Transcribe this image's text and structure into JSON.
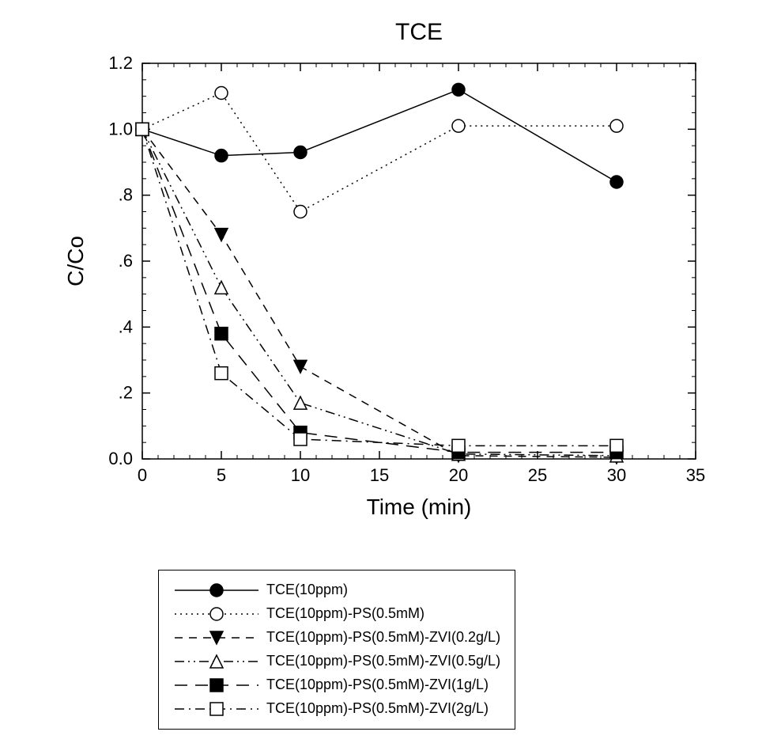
{
  "chart": {
    "type": "line",
    "title": "TCE",
    "title_fontsize": 30,
    "xlabel": "Time (min)",
    "ylabel": "C/Co",
    "axis_label_fontsize": 28,
    "tick_fontsize": 22,
    "background_color": "#ffffff",
    "axis_color": "#000000",
    "tick_color": "#000000",
    "xlim": [
      0,
      35
    ],
    "ylim": [
      0.0,
      1.2
    ],
    "xticks": [
      0,
      5,
      10,
      15,
      20,
      25,
      30,
      35
    ],
    "yticks": [
      0.0,
      0.2,
      0.4,
      0.6,
      0.8,
      1.0,
      1.2
    ],
    "ytick_labels": [
      "0.0",
      ".2",
      ".4",
      ".6",
      ".8",
      "1.0",
      "1.2"
    ],
    "marker_size": 8,
    "marker_stroke": "#000000",
    "line_width": 1.5,
    "series": [
      {
        "id": "tce",
        "label": "TCE(10ppm)",
        "marker": "circle-filled",
        "fill": "#000000",
        "dash": "solid",
        "x": [
          0,
          5,
          10,
          20,
          30
        ],
        "y": [
          1.0,
          0.92,
          0.93,
          1.12,
          0.84
        ]
      },
      {
        "id": "tce_ps",
        "label": "TCE(10ppm)-PS(0.5mM)",
        "marker": "circle-open",
        "fill": "#ffffff",
        "dash": "dot",
        "x": [
          0,
          5,
          10,
          20,
          30
        ],
        "y": [
          1.0,
          1.11,
          0.75,
          1.01,
          1.01
        ]
      },
      {
        "id": "tce_ps_zvi02",
        "label": "TCE(10ppm)-PS(0.5mM)-ZVI(0.2g/L)",
        "marker": "triangle-down-filled",
        "fill": "#000000",
        "dash": "dash",
        "x": [
          0,
          5,
          10,
          20,
          30
        ],
        "y": [
          1.0,
          0.68,
          0.28,
          0.01,
          0.005
        ]
      },
      {
        "id": "tce_ps_zvi05",
        "label": "TCE(10ppm)-PS(0.5mM)-ZVI(0.5g/L)",
        "marker": "triangle-up-open",
        "fill": "#ffffff",
        "dash": "dashdotdot",
        "x": [
          0,
          5,
          10,
          20,
          30
        ],
        "y": [
          1.0,
          0.52,
          0.17,
          0.015,
          0.01
        ]
      },
      {
        "id": "tce_ps_zvi1",
        "label": "TCE(10ppm)-PS(0.5mM)-ZVI(1g/L)",
        "marker": "square-filled",
        "fill": "#000000",
        "dash": "longdash",
        "x": [
          0,
          5,
          10,
          20,
          30
        ],
        "y": [
          1.0,
          0.38,
          0.08,
          0.02,
          0.02
        ]
      },
      {
        "id": "tce_ps_zvi2",
        "label": "TCE(10ppm)-PS(0.5mM)-ZVI(2g/L)",
        "marker": "square-open",
        "fill": "#ffffff",
        "dash": "dashdot",
        "x": [
          0,
          5,
          10,
          20,
          30
        ],
        "y": [
          1.0,
          0.26,
          0.06,
          0.04,
          0.04
        ]
      }
    ]
  }
}
